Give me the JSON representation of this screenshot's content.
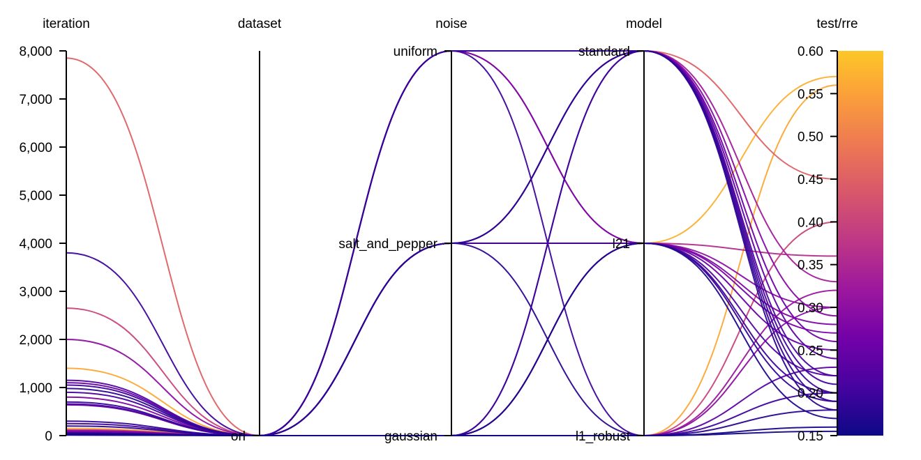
{
  "chart_data": {
    "type": "parallel_coordinates",
    "axes": [
      {
        "key": "iteration",
        "title": "iteration",
        "kind": "numeric",
        "range": [
          0,
          8000
        ],
        "ticks": [
          0,
          1000,
          2000,
          3000,
          4000,
          5000,
          6000,
          7000,
          8000
        ],
        "tick_labels": [
          "0",
          "1,000",
          "2,000",
          "3,000",
          "4,000",
          "5,000",
          "6,000",
          "7,000",
          "8,000"
        ]
      },
      {
        "key": "dataset",
        "title": "dataset",
        "kind": "categorical",
        "categories": [
          "orl"
        ]
      },
      {
        "key": "noise",
        "title": "noise",
        "kind": "categorical",
        "categories": [
          "gaussian",
          "salt_and_pepper",
          "uniform"
        ]
      },
      {
        "key": "model",
        "title": "model",
        "kind": "categorical",
        "categories": [
          "l1_robust",
          "l21",
          "standard"
        ]
      },
      {
        "key": "test_rre",
        "title": "test/rre",
        "kind": "numeric",
        "range": [
          0.15,
          0.6
        ],
        "ticks": [
          0.15,
          0.2,
          0.25,
          0.3,
          0.35,
          0.4,
          0.45,
          0.5,
          0.55,
          0.6
        ],
        "tick_labels": [
          "0.15",
          "0.20",
          "0.25",
          "0.30",
          "0.35",
          "0.40",
          "0.45",
          "0.50",
          "0.55",
          "0.60"
        ]
      }
    ],
    "colorscale": {
      "name": "plasma",
      "domain": [
        0.15,
        0.6
      ],
      "stops": [
        "#0d0887",
        "#46039f",
        "#7201a8",
        "#9c179e",
        "#bd3786",
        "#d8576b",
        "#ed7953",
        "#fb9f3a",
        "#fdca26",
        "#f0f921"
      ]
    },
    "runs": [
      {
        "iteration": 7850,
        "dataset": "orl",
        "noise": "uniform",
        "model": "standard",
        "test_rre": 0.45
      },
      {
        "iteration": 3800,
        "dataset": "orl",
        "noise": "salt_and_pepper",
        "model": "l21",
        "test_rre": 0.2
      },
      {
        "iteration": 2650,
        "dataset": "orl",
        "noise": "gaussian",
        "model": "l1_robust",
        "test_rre": 0.4
      },
      {
        "iteration": 2000,
        "dataset": "orl",
        "noise": "uniform",
        "model": "l21",
        "test_rre": 0.3
      },
      {
        "iteration": 1400,
        "dataset": "orl",
        "noise": "gaussian",
        "model": "l1_robust",
        "test_rre": 0.56
      },
      {
        "iteration": 1150,
        "dataset": "orl",
        "noise": "salt_and_pepper",
        "model": "standard",
        "test_rre": 0.22
      },
      {
        "iteration": 1100,
        "dataset": "orl",
        "noise": "gaussian",
        "model": "l21",
        "test_rre": 0.25
      },
      {
        "iteration": 1050,
        "dataset": "orl",
        "noise": "uniform",
        "model": "l1_robust",
        "test_rre": 0.2
      },
      {
        "iteration": 980,
        "dataset": "orl",
        "noise": "salt_and_pepper",
        "model": "l1_robust",
        "test_rre": 0.18
      },
      {
        "iteration": 900,
        "dataset": "orl",
        "noise": "gaussian",
        "model": "standard",
        "test_rre": 0.21
      },
      {
        "iteration": 800,
        "dataset": "orl",
        "noise": "uniform",
        "model": "l21",
        "test_rre": 0.28
      },
      {
        "iteration": 700,
        "dataset": "orl",
        "noise": "gaussian",
        "model": "l21",
        "test_rre": 0.19
      },
      {
        "iteration": 660,
        "dataset": "orl",
        "noise": "salt_and_pepper",
        "model": "l21",
        "test_rre": 0.22
      },
      {
        "iteration": 640,
        "dataset": "orl",
        "noise": "gaussian",
        "model": "l1_robust",
        "test_rre": 0.23
      },
      {
        "iteration": 300,
        "dataset": "orl",
        "noise": "uniform",
        "model": "standard",
        "test_rre": 0.19
      },
      {
        "iteration": 250,
        "dataset": "orl",
        "noise": "gaussian",
        "model": "standard",
        "test_rre": 0.2
      },
      {
        "iteration": 200,
        "dataset": "orl",
        "noise": "salt_and_pepper",
        "model": "standard",
        "test_rre": 0.18
      },
      {
        "iteration": 150,
        "dataset": "orl",
        "noise": "gaussian",
        "model": "l21",
        "test_rre": 0.57
      },
      {
        "iteration": 120,
        "dataset": "orl",
        "noise": "salt_and_pepper",
        "model": "l21",
        "test_rre": 0.36
      },
      {
        "iteration": 100,
        "dataset": "orl",
        "noise": "gaussian",
        "model": "l1_robust",
        "test_rre": 0.3
      },
      {
        "iteration": 90,
        "dataset": "orl",
        "noise": "uniform",
        "model": "standard",
        "test_rre": 0.33
      },
      {
        "iteration": 80,
        "dataset": "orl",
        "noise": "salt_and_pepper",
        "model": "l21",
        "test_rre": 0.27
      },
      {
        "iteration": 70,
        "dataset": "orl",
        "noise": "gaussian",
        "model": "l1_robust",
        "test_rre": 0.32
      },
      {
        "iteration": 60,
        "dataset": "orl",
        "noise": "uniform",
        "model": "standard",
        "test_rre": 0.24
      },
      {
        "iteration": 50,
        "dataset": "orl",
        "noise": "gaussian",
        "model": "l21",
        "test_rre": 0.17
      },
      {
        "iteration": 40,
        "dataset": "orl",
        "noise": "salt_and_pepper",
        "model": "standard",
        "test_rre": 0.29
      },
      {
        "iteration": 30,
        "dataset": "orl",
        "noise": "gaussian",
        "model": "l1_robust",
        "test_rre": 0.16
      },
      {
        "iteration": 20,
        "dataset": "orl",
        "noise": "uniform",
        "model": "standard",
        "test_rre": 0.26
      },
      {
        "iteration": 10,
        "dataset": "orl",
        "noise": "gaussian",
        "model": "l1_robust",
        "test_rre": 0.155
      }
    ]
  }
}
